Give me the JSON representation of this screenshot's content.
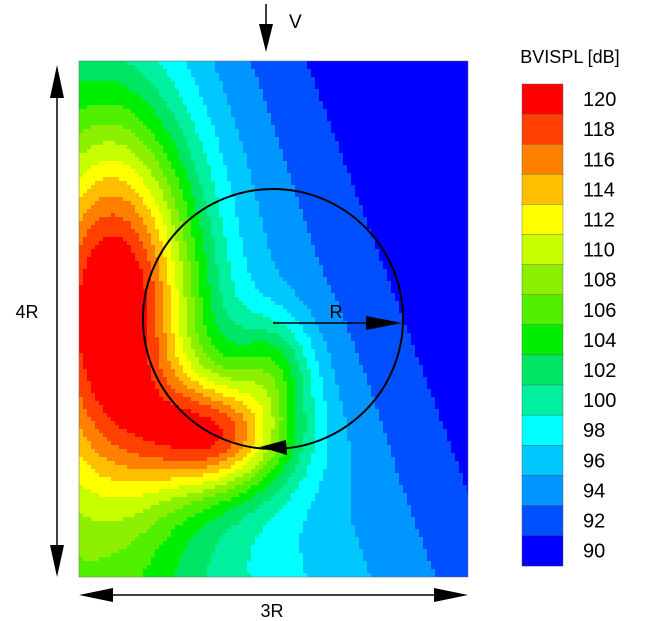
{
  "chart_data": {
    "type": "heatmap",
    "title": "",
    "colorbar": {
      "title": "BVISPL [dB]",
      "levels": [
        120,
        118,
        116,
        114,
        112,
        110,
        108,
        106,
        104,
        102,
        100,
        98,
        96,
        94,
        92,
        90
      ],
      "colors": [
        "#ff0000",
        "#ff4000",
        "#ff8000",
        "#ffbf00",
        "#ffff00",
        "#c8ff00",
        "#8cf000",
        "#50f000",
        "#00ee00",
        "#00e664",
        "#00f0a0",
        "#00ffff",
        "#00c8ff",
        "#0096ff",
        "#0050ff",
        "#0000ff"
      ],
      "min": 90,
      "max": 121,
      "unit": "dB"
    },
    "annotations": {
      "flow_label": "V",
      "height_label": "4R",
      "width_label": "3R",
      "radius_label": "R"
    },
    "field_sources": [
      {
        "x": -1.2,
        "y": 0.1,
        "amplitude": 23,
        "sx": 0.44,
        "sy": 1.05
      },
      {
        "x": -0.4,
        "y": -0.9,
        "amplitude": 18,
        "sx": 0.4,
        "sy": 0.32
      },
      {
        "x": 0.0,
        "y": -0.35,
        "amplitude": 7,
        "sx": 0.22,
        "sy": 0.28
      }
    ],
    "field_base": 96,
    "field_gradient": {
      "x": -4.0,
      "y": -1.5
    },
    "field_extent": {
      "x": [
        -1.5,
        1.5
      ],
      "y": [
        -2.0,
        2.0
      ]
    },
    "circle": {
      "center": [
        0,
        0
      ],
      "radius": 1.0,
      "rotation": "clockwise"
    }
  }
}
